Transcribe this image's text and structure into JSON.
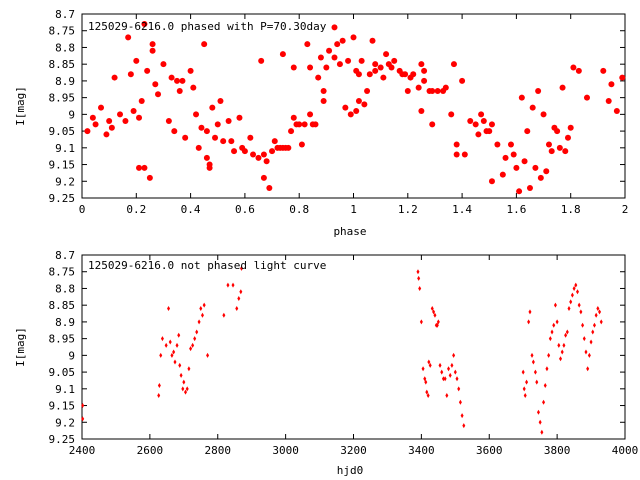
{
  "chart_data": [
    {
      "type": "scatter",
      "title": "125029-6216.0 phased with P=70.30day",
      "xlabel": "phase",
      "ylabel": "I[mag]",
      "xlim": [
        0,
        2
      ],
      "ylim": [
        8.7,
        9.25
      ],
      "y_inverted": true,
      "x_ticks": [
        "0",
        "0.2",
        "0.4",
        "0.6",
        "0.8",
        "1",
        "1.2",
        "1.4",
        "1.6",
        "1.8",
        "2"
      ],
      "y_ticks": [
        "8.7",
        "8.75",
        "8.8",
        "8.85",
        "8.9",
        "8.95",
        "9",
        "9.05",
        "9.1",
        "9.15",
        "9.2",
        "9.25"
      ],
      "marker": "filled-circle",
      "color": "#ff0000",
      "points": [
        [
          0.02,
          9.05
        ],
        [
          0.04,
          9.01
        ],
        [
          0.05,
          9.03
        ],
        [
          0.07,
          8.98
        ],
        [
          0.09,
          9.06
        ],
        [
          0.1,
          9.02
        ],
        [
          0.11,
          9.04
        ],
        [
          0.12,
          8.89
        ],
        [
          0.14,
          9.0
        ],
        [
          0.16,
          9.02
        ],
        [
          0.17,
          8.77
        ],
        [
          0.18,
          8.88
        ],
        [
          0.19,
          8.99
        ],
        [
          0.2,
          8.84
        ],
        [
          0.21,
          9.01
        ],
        [
          0.22,
          8.96
        ],
        [
          0.23,
          8.73
        ],
        [
          0.21,
          9.16
        ],
        [
          0.23,
          9.16
        ],
        [
          0.24,
          8.87
        ],
        [
          0.25,
          9.19
        ],
        [
          0.26,
          8.81
        ],
        [
          0.26,
          8.79
        ],
        [
          0.27,
          8.91
        ],
        [
          0.28,
          8.94
        ],
        [
          0.3,
          8.85
        ],
        [
          0.32,
          9.02
        ],
        [
          0.33,
          8.89
        ],
        [
          0.34,
          9.05
        ],
        [
          0.35,
          8.9
        ],
        [
          0.36,
          8.93
        ],
        [
          0.37,
          8.9
        ],
        [
          0.38,
          9.07
        ],
        [
          0.4,
          8.87
        ],
        [
          0.41,
          8.92
        ],
        [
          0.42,
          9.0
        ],
        [
          0.43,
          9.1
        ],
        [
          0.44,
          9.04
        ],
        [
          0.45,
          8.79
        ],
        [
          0.46,
          9.05
        ],
        [
          0.46,
          9.13
        ],
        [
          0.47,
          9.15
        ],
        [
          0.47,
          9.16
        ],
        [
          0.48,
          8.98
        ],
        [
          0.5,
          9.03
        ],
        [
          0.49,
          9.07
        ],
        [
          0.51,
          8.96
        ],
        [
          0.52,
          9.08
        ],
        [
          0.54,
          9.02
        ],
        [
          0.55,
          9.08
        ],
        [
          0.56,
          9.11
        ],
        [
          0.58,
          9.01
        ],
        [
          0.59,
          9.1
        ],
        [
          0.6,
          9.11
        ],
        [
          0.62,
          9.07
        ],
        [
          0.63,
          9.12
        ],
        [
          0.65,
          9.13
        ],
        [
          0.66,
          8.84
        ],
        [
          0.67,
          9.12
        ],
        [
          0.67,
          9.19
        ],
        [
          0.68,
          9.14
        ],
        [
          0.69,
          9.22
        ],
        [
          0.7,
          9.11
        ],
        [
          0.71,
          9.08
        ],
        [
          0.72,
          9.1
        ],
        [
          0.73,
          9.1
        ],
        [
          0.74,
          9.1
        ],
        [
          0.74,
          8.82
        ],
        [
          0.75,
          9.1
        ],
        [
          0.76,
          9.1
        ],
        [
          0.77,
          9.05
        ],
        [
          0.78,
          9.01
        ],
        [
          0.78,
          8.86
        ],
        [
          0.79,
          9.03
        ],
        [
          0.8,
          9.03
        ],
        [
          0.81,
          9.09
        ],
        [
          0.82,
          9.03
        ],
        [
          0.83,
          8.79
        ],
        [
          0.84,
          9.0
        ],
        [
          0.84,
          8.86
        ],
        [
          0.85,
          9.03
        ],
        [
          0.86,
          9.03
        ],
        [
          0.87,
          8.89
        ],
        [
          0.88,
          8.83
        ],
        [
          0.89,
          8.93
        ],
        [
          0.89,
          8.96
        ],
        [
          0.9,
          8.86
        ],
        [
          0.91,
          8.81
        ],
        [
          0.93,
          8.74
        ],
        [
          0.93,
          8.83
        ],
        [
          0.94,
          8.79
        ],
        [
          0.95,
          8.85
        ],
        [
          0.96,
          8.78
        ],
        [
          0.97,
          8.98
        ],
        [
          0.98,
          8.84
        ],
        [
          0.99,
          9.0
        ],
        [
          1.0,
          8.77
        ],
        [
          1.01,
          8.99
        ],
        [
          1.01,
          8.87
        ],
        [
          1.02,
          8.88
        ],
        [
          1.02,
          8.96
        ],
        [
          1.03,
          8.84
        ],
        [
          1.04,
          8.97
        ],
        [
          1.05,
          8.93
        ],
        [
          1.06,
          8.88
        ],
        [
          1.07,
          8.78
        ],
        [
          1.08,
          8.87
        ],
        [
          1.08,
          8.85
        ],
        [
          1.1,
          8.86
        ],
        [
          1.11,
          8.89
        ],
        [
          1.12,
          8.82
        ],
        [
          1.13,
          8.85
        ],
        [
          1.14,
          8.86
        ],
        [
          1.15,
          8.84
        ],
        [
          1.17,
          8.87
        ],
        [
          1.18,
          8.88
        ],
        [
          1.19,
          8.88
        ],
        [
          1.2,
          8.93
        ],
        [
          1.21,
          8.89
        ],
        [
          1.22,
          8.88
        ],
        [
          1.24,
          8.92
        ],
        [
          1.25,
          8.85
        ],
        [
          1.25,
          8.99
        ],
        [
          1.26,
          8.87
        ],
        [
          1.26,
          8.9
        ],
        [
          1.28,
          8.93
        ],
        [
          1.29,
          8.93
        ],
        [
          1.29,
          9.03
        ],
        [
          1.31,
          8.93
        ],
        [
          1.33,
          8.93
        ],
        [
          1.34,
          8.92
        ],
        [
          1.36,
          9.0
        ],
        [
          1.37,
          8.85
        ],
        [
          1.38,
          9.09
        ],
        [
          1.38,
          9.12
        ],
        [
          1.4,
          8.9
        ],
        [
          1.41,
          9.12
        ],
        [
          1.43,
          9.02
        ],
        [
          1.45,
          9.03
        ],
        [
          1.46,
          9.06
        ],
        [
          1.47,
          9.0
        ],
        [
          1.48,
          9.02
        ],
        [
          1.49,
          9.05
        ],
        [
          1.5,
          9.05
        ],
        [
          1.51,
          9.03
        ],
        [
          1.51,
          9.2
        ],
        [
          1.53,
          9.09
        ],
        [
          1.55,
          9.18
        ],
        [
          1.56,
          9.13
        ],
        [
          1.58,
          9.09
        ],
        [
          1.59,
          9.12
        ],
        [
          1.6,
          9.16
        ],
        [
          1.61,
          9.23
        ],
        [
          1.62,
          8.95
        ],
        [
          1.63,
          9.14
        ],
        [
          1.64,
          9.05
        ],
        [
          1.65,
          9.22
        ],
        [
          1.66,
          8.98
        ],
        [
          1.67,
          9.16
        ],
        [
          1.68,
          8.93
        ],
        [
          1.69,
          9.19
        ],
        [
          1.7,
          9.0
        ],
        [
          1.71,
          9.17
        ],
        [
          1.72,
          9.09
        ],
        [
          1.73,
          9.11
        ],
        [
          1.74,
          9.04
        ],
        [
          1.75,
          9.05
        ],
        [
          1.76,
          9.1
        ],
        [
          1.77,
          8.92
        ],
        [
          1.78,
          9.11
        ],
        [
          1.79,
          9.07
        ],
        [
          1.8,
          9.04
        ],
        [
          1.81,
          8.86
        ],
        [
          1.83,
          8.87
        ],
        [
          1.86,
          8.95
        ],
        [
          1.92,
          8.87
        ],
        [
          1.94,
          8.96
        ],
        [
          1.95,
          8.91
        ],
        [
          1.97,
          8.99
        ],
        [
          1.99,
          8.89
        ]
      ]
    },
    {
      "type": "scatter",
      "title": "125029-6216.0 not phased light curve",
      "xlabel": "hjd0",
      "ylabel": "I[mag]",
      "xlim": [
        2400,
        4000
      ],
      "ylim": [
        8.7,
        9.25
      ],
      "y_inverted": true,
      "x_ticks": [
        "2400",
        "2600",
        "2800",
        "3000",
        "3200",
        "3400",
        "3600",
        "3800",
        "4000"
      ],
      "y_ticks": [
        "8.7",
        "8.75",
        "8.8",
        "8.85",
        "8.9",
        "8.95",
        "9",
        "9.05",
        "9.1",
        "9.15",
        "9.2",
        "9.25"
      ],
      "marker": "small-diamond",
      "color": "#ff0000",
      "points": [
        [
          2402,
          9.15
        ],
        [
          2402,
          9.19
        ],
        [
          2626,
          9.12
        ],
        [
          2628,
          9.09
        ],
        [
          2632,
          9.0
        ],
        [
          2637,
          8.95
        ],
        [
          2648,
          8.97
        ],
        [
          2655,
          8.86
        ],
        [
          2660,
          8.96
        ],
        [
          2665,
          9.0
        ],
        [
          2670,
          8.99
        ],
        [
          2674,
          9.02
        ],
        [
          2680,
          8.97
        ],
        [
          2685,
          8.94
        ],
        [
          2688,
          9.03
        ],
        [
          2692,
          9.06
        ],
        [
          2697,
          9.1
        ],
        [
          2700,
          9.08
        ],
        [
          2705,
          9.11
        ],
        [
          2710,
          9.1
        ],
        [
          2715,
          9.04
        ],
        [
          2720,
          8.98
        ],
        [
          2726,
          8.97
        ],
        [
          2732,
          8.95
        ],
        [
          2738,
          8.93
        ],
        [
          2745,
          8.9
        ],
        [
          2750,
          8.86
        ],
        [
          2755,
          8.88
        ],
        [
          2760,
          8.85
        ],
        [
          2770,
          9.0
        ],
        [
          2818,
          8.88
        ],
        [
          2830,
          8.79
        ],
        [
          2845,
          8.79
        ],
        [
          2856,
          8.86
        ],
        [
          2862,
          8.83
        ],
        [
          2868,
          8.81
        ],
        [
          2870,
          8.74
        ],
        [
          3390,
          8.75
        ],
        [
          3392,
          8.77
        ],
        [
          3395,
          8.8
        ],
        [
          3400,
          8.9
        ],
        [
          3405,
          9.04
        ],
        [
          3410,
          9.07
        ],
        [
          3413,
          9.08
        ],
        [
          3416,
          9.11
        ],
        [
          3420,
          9.12
        ],
        [
          3422,
          9.02
        ],
        [
          3426,
          9.03
        ],
        [
          3432,
          8.86
        ],
        [
          3436,
          8.87
        ],
        [
          3440,
          8.88
        ],
        [
          3444,
          8.91
        ],
        [
          3447,
          8.91
        ],
        [
          3450,
          8.9
        ],
        [
          3455,
          9.03
        ],
        [
          3460,
          9.05
        ],
        [
          3465,
          9.07
        ],
        [
          3470,
          9.07
        ],
        [
          3475,
          9.12
        ],
        [
          3480,
          9.04
        ],
        [
          3485,
          9.06
        ],
        [
          3490,
          9.03
        ],
        [
          3495,
          9.0
        ],
        [
          3500,
          9.05
        ],
        [
          3505,
          9.07
        ],
        [
          3510,
          9.1
        ],
        [
          3515,
          9.14
        ],
        [
          3520,
          9.18
        ],
        [
          3525,
          9.21
        ],
        [
          3700,
          9.05
        ],
        [
          3703,
          9.1
        ],
        [
          3706,
          9.12
        ],
        [
          3710,
          9.08
        ],
        [
          3716,
          8.9
        ],
        [
          3720,
          8.87
        ],
        [
          3726,
          9.0
        ],
        [
          3730,
          9.02
        ],
        [
          3736,
          9.05
        ],
        [
          3740,
          9.08
        ],
        [
          3745,
          9.17
        ],
        [
          3750,
          9.2
        ],
        [
          3755,
          9.23
        ],
        [
          3760,
          9.14
        ],
        [
          3765,
          9.09
        ],
        [
          3770,
          9.04
        ],
        [
          3775,
          9.0
        ],
        [
          3780,
          8.95
        ],
        [
          3785,
          8.93
        ],
        [
          3790,
          8.91
        ],
        [
          3795,
          8.85
        ],
        [
          3800,
          8.9
        ],
        [
          3805,
          8.97
        ],
        [
          3810,
          9.01
        ],
        [
          3815,
          8.99
        ],
        [
          3820,
          8.97
        ],
        [
          3825,
          8.94
        ],
        [
          3830,
          8.93
        ],
        [
          3835,
          8.86
        ],
        [
          3840,
          8.84
        ],
        [
          3845,
          8.82
        ],
        [
          3850,
          8.8
        ],
        [
          3855,
          8.79
        ],
        [
          3860,
          8.81
        ],
        [
          3865,
          8.85
        ],
        [
          3870,
          8.87
        ],
        [
          3875,
          8.91
        ],
        [
          3880,
          8.95
        ],
        [
          3885,
          8.99
        ],
        [
          3890,
          9.04
        ],
        [
          3895,
          9.0
        ],
        [
          3900,
          8.96
        ],
        [
          3905,
          8.93
        ],
        [
          3910,
          8.91
        ],
        [
          3915,
          8.88
        ],
        [
          3920,
          8.86
        ],
        [
          3925,
          8.87
        ],
        [
          3930,
          8.9
        ]
      ]
    }
  ]
}
